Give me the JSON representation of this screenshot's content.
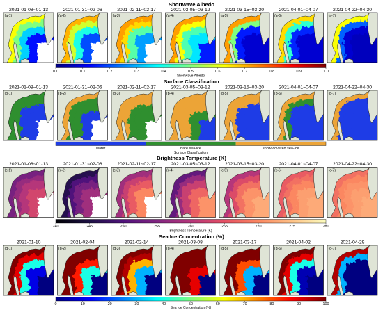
{
  "rows": [
    {
      "title": "Shortwave Albedo",
      "colorbar": {
        "label": "Shortwave Albedo",
        "range": [
          0.0,
          1.0
        ],
        "ticks": [
          "0.0",
          "0.1",
          "0.2",
          "0.3",
          "0.4",
          "0.5",
          "0.6",
          "0.7",
          "0.8",
          "0.9",
          "1.0"
        ],
        "colors": [
          "#000080",
          "#0000ff",
          "#0080ff",
          "#00ffff",
          "#80ff80",
          "#ffff00",
          "#ff8000",
          "#ff0000",
          "#800000"
        ]
      },
      "panels": [
        {
          "label": "(a-1)",
          "date": "2021-01-08~01-13",
          "values": [
            0.62,
            0.5,
            0.33,
            0.14
          ],
          "outer": null
        },
        {
          "label": "(a-2)",
          "date": "2021-01-31~02-06",
          "values": [
            0.7,
            0.58,
            0.4,
            0.2
          ],
          "outer": null
        },
        {
          "label": "(a-3)",
          "date": "2021-02-11~02-17",
          "values": [
            0.72,
            0.66,
            0.46,
            0.28
          ],
          "outer": null
        },
        {
          "label": "(a-4)",
          "date": "2021-03-05~03-12",
          "values": [
            0.72,
            0.62,
            0.45,
            0.35
          ],
          "outer": 0.15
        },
        {
          "label": "(a-5)",
          "date": "2021-03-15~03-20",
          "values": [
            0.72,
            0.5,
            0.15,
            0.08
          ],
          "outer": 0.08
        },
        {
          "label": "(a-6)",
          "date": "2021-04-01~04-07",
          "values": [
            0.66,
            0.42,
            0.16,
            0.08
          ],
          "outer": 0.08
        },
        {
          "label": "(a-7)",
          "date": "2021-04-22~04-30",
          "values": [
            0.62,
            0.22,
            0.08,
            0.06
          ],
          "outer": 0.06
        }
      ]
    },
    {
      "title": "Surface Classification",
      "colorbar": {
        "label": "Surface Classification",
        "categories": [
          "water",
          "bare sea-ice",
          "snow-covered sea-ice"
        ],
        "colors": [
          "#1e3ce6",
          "#2f8f2f",
          "#eca437"
        ]
      },
      "panels": [
        {
          "label": "(b-1)",
          "date": "2021-01-08~01-13",
          "values": [
            1,
            1,
            0,
            0
          ],
          "outer": null
        },
        {
          "label": "(b-2)",
          "date": "2021-01-31~02-06",
          "values": [
            2,
            1,
            1,
            0
          ],
          "outer": null
        },
        {
          "label": "(b-3)",
          "date": "2021-02-11~02-17",
          "values": [
            2,
            2,
            1,
            1
          ],
          "outer": null
        },
        {
          "label": "(b-4)",
          "date": "2021-03-05~03-12",
          "values": [
            2,
            2,
            2,
            1
          ],
          "outer": 0
        },
        {
          "label": "(b-5)",
          "date": "2021-03-15~03-20",
          "values": [
            2,
            2,
            0,
            0
          ],
          "outer": 0
        },
        {
          "label": "(b-6)",
          "date": "2021-04-01~04-07",
          "values": [
            2,
            1,
            0,
            0
          ],
          "outer": 0
        },
        {
          "label": "(b-7)",
          "date": "2021-04-22~04-30",
          "values": [
            2,
            0,
            0,
            0
          ],
          "outer": 0
        }
      ]
    },
    {
      "title": "Brightness Temperature (K)",
      "colorbar": {
        "label": "Brightness Temperature (K)",
        "range": [
          240,
          280
        ],
        "ticks": [
          "240",
          "245",
          "250",
          "255",
          "260",
          "265",
          "270",
          "275",
          "280"
        ],
        "colors": [
          "#000004",
          "#1c1044",
          "#4f127b",
          "#812581",
          "#b5367a",
          "#e55064",
          "#fb8761",
          "#fec287",
          "#fcfdbf"
        ]
      },
      "panels": [
        {
          "label": "(c-1)",
          "date": "2021-01-08~01-13",
          "values": [
            254,
            257,
            260,
            263
          ],
          "outer": null
        },
        {
          "label": "(c-2)",
          "date": "2021-01-31~02-06",
          "values": [
            246,
            250,
            254,
            258
          ],
          "outer": null
        },
        {
          "label": "(c-3)",
          "date": "2021-02-11~02-17",
          "values": [
            258,
            262,
            266,
            270
          ],
          "outer": null
        },
        {
          "label": "(c-4)",
          "date": "2021-03-05~03-12",
          "values": [
            252,
            257,
            262,
            267
          ],
          "outer": 271
        },
        {
          "label": "(c-5)",
          "date": "2021-03-15~03-20",
          "values": [
            260,
            264,
            268,
            271
          ],
          "outer": 273
        },
        {
          "label": "(c-6)",
          "date": "2021-04-01~04-07",
          "values": [
            266,
            268,
            270,
            272
          ],
          "outer": 273
        },
        {
          "label": "(c-7)",
          "date": "2021-04-22~04-30",
          "values": [
            268,
            270,
            271,
            272
          ],
          "outer": 273
        }
      ]
    },
    {
      "title": "Sea Ice Concentration (%)",
      "colorbar": {
        "label": "Sea Ice Concentration (%)",
        "range": [
          0,
          100
        ],
        "ticks": [
          "0",
          "10",
          "20",
          "30",
          "40",
          "50",
          "60",
          "70",
          "80",
          "90",
          "100"
        ],
        "colors": [
          "#000080",
          "#0000ff",
          "#0080ff",
          "#00ffff",
          "#80ff80",
          "#ffff00",
          "#ff8000",
          "#ff0000",
          "#800000"
        ]
      },
      "panels": [
        {
          "label": "(d-1)",
          "date": "2021-01-10",
          "values": [
            100,
            90,
            40,
            10
          ],
          "outer": 0
        },
        {
          "label": "(d-2)",
          "date": "2021-02-04",
          "values": [
            100,
            100,
            85,
            40
          ],
          "outer": 0
        },
        {
          "label": "(d-3)",
          "date": "2021-02-14",
          "values": [
            100,
            95,
            70,
            30
          ],
          "outer": 0
        },
        {
          "label": "(d-4)",
          "date": "2021-03-08",
          "values": [
            100,
            100,
            100,
            90
          ],
          "outer": 0
        },
        {
          "label": "(d-5)",
          "date": "2021-03-17",
          "values": [
            100,
            100,
            80,
            30
          ],
          "outer": 0
        },
        {
          "label": "(d-6)",
          "date": "2021-04-02",
          "values": [
            100,
            90,
            40,
            5
          ],
          "outer": 0
        },
        {
          "label": "(d-7)",
          "date": "2021-04-29",
          "values": [
            95,
            30,
            0,
            0
          ],
          "outer": 0
        }
      ]
    }
  ],
  "map_colors": {
    "land": "#dfe4d6",
    "coastline": "#222222",
    "no_data": "#ffffff"
  }
}
